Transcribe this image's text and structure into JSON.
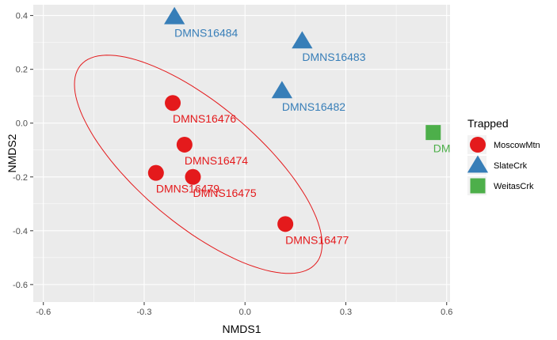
{
  "chart_data": {
    "type": "scatter",
    "xlabel": "NMDS1",
    "ylabel": "NMDS2",
    "xlim": [
      -0.63,
      0.61
    ],
    "ylim": [
      -0.665,
      0.44
    ],
    "xticks": [
      -0.6,
      -0.3,
      0.0,
      0.3,
      0.6
    ],
    "xtick_labels": [
      "-0.6",
      "-0.3",
      "0.0",
      "0.3",
      "0.6"
    ],
    "yticks": [
      0.4,
      0.2,
      0.0,
      -0.2,
      -0.4,
      -0.6
    ],
    "ytick_labels": [
      "0.4",
      "0.2",
      "0.0",
      "-0.2",
      "-0.4",
      "-0.6"
    ],
    "grid": true,
    "legend": {
      "title": "Trapped",
      "position": "right",
      "items": [
        {
          "name": "MoscowMtn",
          "shape": "circle",
          "color": "#E41A1C"
        },
        {
          "name": "SlateCrk",
          "shape": "triangle",
          "color": "#377EB8"
        },
        {
          "name": "WeitasCrk",
          "shape": "square",
          "color": "#4DAF4A"
        }
      ]
    },
    "points": [
      {
        "label": "DMNS16476",
        "group": "MoscowMtn",
        "x": -0.215,
        "y": 0.075
      },
      {
        "label": "DMNS16474",
        "group": "MoscowMtn",
        "x": -0.18,
        "y": -0.08
      },
      {
        "label": "DMNS16479",
        "group": "MoscowMtn",
        "x": -0.265,
        "y": -0.185
      },
      {
        "label": "DMNS16475",
        "group": "MoscowMtn",
        "x": -0.155,
        "y": -0.2
      },
      {
        "label": "DMNS16477",
        "group": "MoscowMtn",
        "x": 0.12,
        "y": -0.375
      },
      {
        "label": "DMNS16484",
        "group": "SlateCrk",
        "x": -0.21,
        "y": 0.395
      },
      {
        "label": "DMNS16483",
        "group": "SlateCrk",
        "x": 0.17,
        "y": 0.305
      },
      {
        "label": "DMNS16482",
        "group": "SlateCrk",
        "x": 0.11,
        "y": 0.12
      },
      {
        "label": "DMI",
        "group": "WeitasCrk",
        "x": 0.56,
        "y": -0.035
      }
    ],
    "ellipse": {
      "group": "MoscowMtn",
      "color": "#E41A1C"
    }
  }
}
